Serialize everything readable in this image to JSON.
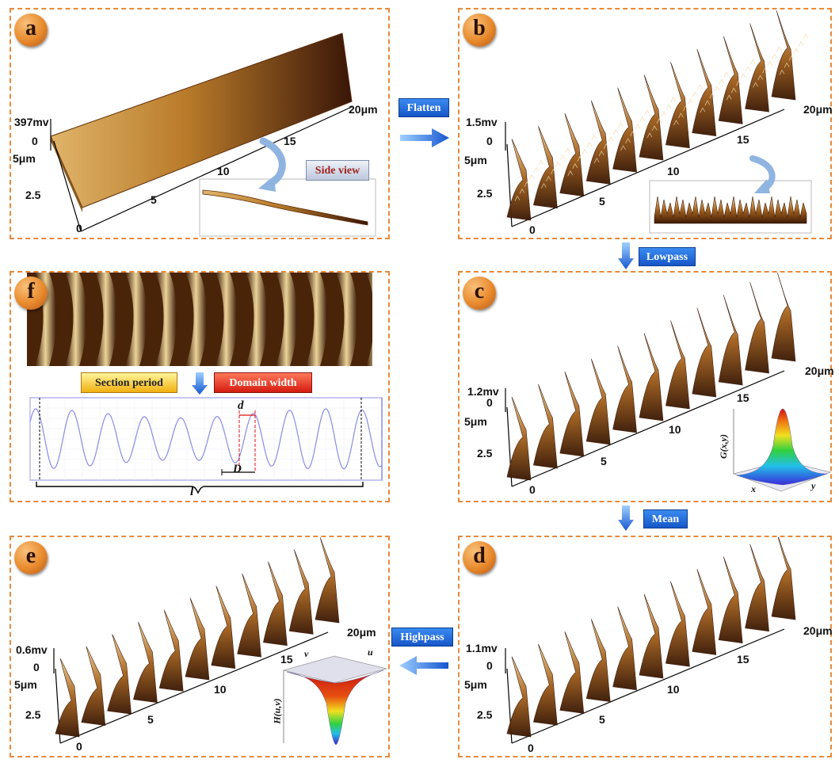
{
  "panels": {
    "a": {
      "letter": "a",
      "z_max": "397mv",
      "z_zero": "0",
      "y_max": "5μm",
      "y_mid": "2.5",
      "origin": "0",
      "x_5": "5",
      "x_10": "10",
      "x_15": "15",
      "x_max": "20μm",
      "inset_label": "Side view"
    },
    "b": {
      "letter": "b",
      "z_max": "1.5mv",
      "z_zero": "0",
      "y_max": "5μm",
      "y_mid": "2.5",
      "origin": "0",
      "x_5": "5",
      "x_10": "10",
      "x_15": "15",
      "x_max": "20μm"
    },
    "c": {
      "letter": "c",
      "z_max": "1.2mv",
      "z_zero": "0",
      "y_max": "5μm",
      "y_mid": "2.5",
      "origin": "0",
      "x_5": "5",
      "x_10": "10",
      "x_15": "15",
      "x_max": "20μm",
      "inset_axis_z": "G(x,y)",
      "inset_axis_x": "x",
      "inset_axis_y": "y"
    },
    "d": {
      "letter": "d",
      "z_max": "1.1mv",
      "z_zero": "0",
      "y_max": "5μm",
      "y_mid": "2.5",
      "origin": "0",
      "x_5": "5",
      "x_10": "10",
      "x_15": "15",
      "x_max": "20μm"
    },
    "e": {
      "letter": "e",
      "z_max": "0.6mv",
      "z_zero": "0",
      "y_max": "5μm",
      "y_mid": "2.5",
      "origin": "0",
      "x_5": "5",
      "x_10": "10",
      "x_15": "15",
      "x_max": "20μm",
      "inset_axis_z": "H(u,v)",
      "inset_axis_u": "u",
      "inset_axis_v": "v"
    },
    "f": {
      "letter": "f",
      "section_period": "Section period",
      "domain_width": "Domain width",
      "label_d": "d",
      "label_D": "D",
      "label_l": "l"
    }
  },
  "steps": {
    "flatten": "Flatten",
    "lowpass": "Lowpass",
    "mean": "Mean",
    "highpass": "Highpass"
  },
  "colors": {
    "panel_border": "#e8893a",
    "arrow_blue": "#1f6fe0",
    "badge": "#e88a2c",
    "wave": "#8a8ae8"
  }
}
